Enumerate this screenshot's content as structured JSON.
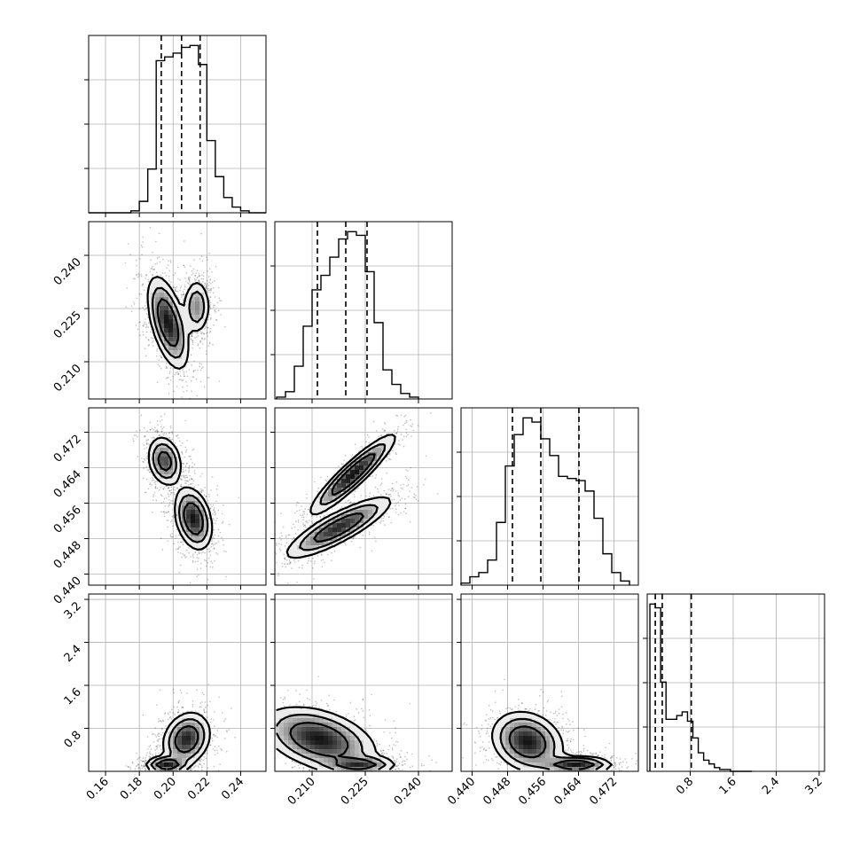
{
  "chart_data": {
    "type": "scatter",
    "description_kind": "corner plot",
    "params": [
      {
        "id": "p0",
        "range": [
          0.15,
          0.255
        ],
        "ticks": [
          0.16,
          0.18,
          0.2,
          0.22,
          0.24
        ],
        "tick_labels": [
          "0.16",
          "0.18",
          "0.20",
          "0.22",
          "0.24"
        ]
      },
      {
        "id": "p1",
        "range": [
          0.1995,
          0.2495
        ],
        "ticks": [
          0.21,
          0.225,
          0.24
        ],
        "tick_labels": [
          "0.210",
          "0.225",
          "0.240"
        ]
      },
      {
        "id": "p2",
        "range": [
          0.4375,
          0.4775
        ],
        "ticks": [
          0.44,
          0.448,
          0.456,
          0.464,
          0.472
        ],
        "tick_labels": [
          "0.440",
          "0.448",
          "0.456",
          "0.464",
          "0.472"
        ]
      },
      {
        "id": "p3",
        "range": [
          0.0,
          3.3
        ],
        "ticks": [
          0.8,
          1.6,
          2.4,
          3.2
        ],
        "tick_labels": [
          "0.8",
          "1.6",
          "2.4",
          "3.2"
        ]
      }
    ],
    "histograms": [
      {
        "param": 0,
        "bin_edges": [
          0.15,
          0.155,
          0.16,
          0.165,
          0.17,
          0.175,
          0.18,
          0.185,
          0.19,
          0.195,
          0.2,
          0.205,
          0.21,
          0.215,
          0.22,
          0.225,
          0.23,
          0.235,
          0.24,
          0.245,
          0.25,
          0.255
        ],
        "counts": [
          0,
          0,
          0,
          0,
          0,
          1,
          6,
          23,
          80,
          82,
          84,
          87,
          88,
          78,
          38,
          19,
          8,
          3,
          1,
          0,
          0
        ],
        "quantiles": [
          0.193,
          0.205,
          0.216
        ]
      },
      {
        "param": 1,
        "bin_edges": [
          0.2,
          0.2025,
          0.205,
          0.2075,
          0.21,
          0.2125,
          0.215,
          0.2175,
          0.22,
          0.2225,
          0.225,
          0.2275,
          0.23,
          0.2325,
          0.235,
          0.2375,
          0.24
        ],
        "counts": [
          1,
          4,
          18,
          40,
          60,
          68,
          78,
          88,
          92,
          90,
          70,
          42,
          16,
          8,
          3,
          1
        ],
        "quantiles": [
          0.2115,
          0.2195,
          0.2255
        ]
      },
      {
        "param": 2,
        "bin_edges": [
          0.4375,
          0.4395,
          0.4415,
          0.4435,
          0.4455,
          0.4475,
          0.4495,
          0.4515,
          0.4535,
          0.4555,
          0.4575,
          0.4595,
          0.4615,
          0.4635,
          0.4655,
          0.4675,
          0.4695,
          0.4715,
          0.4735,
          0.4755
        ],
        "counts": [
          1,
          4,
          6,
          12,
          30,
          57,
          72,
          80,
          78,
          70,
          62,
          52,
          51,
          50,
          45,
          32,
          15,
          6,
          2
        ],
        "quantiles": [
          0.4491,
          0.4555,
          0.4641
        ]
      },
      {
        "param": 3,
        "bin_edges": [
          0.05,
          0.15,
          0.25,
          0.35,
          0.45,
          0.55,
          0.65,
          0.75,
          0.85,
          0.95,
          1.05,
          1.15,
          1.25,
          1.35,
          1.45,
          1.55,
          1.65,
          1.75,
          1.85,
          1.95
        ],
        "counts": [
          90,
          88,
          48,
          28,
          28,
          30,
          32,
          27,
          18,
          10,
          6,
          4,
          2,
          1,
          1,
          0,
          0,
          0,
          0
        ],
        "quantiles": [
          0.15,
          0.28,
          0.82
        ]
      }
    ],
    "pairs": [
      {
        "x": 0,
        "y": 1,
        "modes": [
          {
            "mu": [
              0.197,
              0.221
            ],
            "sd": [
              0.006,
              0.0065
            ],
            "rho": -0.55,
            "weight": 0.6
          },
          {
            "mu": [
              0.214,
              0.2255
            ],
            "sd": [
              0.004,
              0.004
            ],
            "rho": 0.0,
            "weight": 0.4
          }
        ]
      },
      {
        "x": 0,
        "y": 2,
        "modes": [
          {
            "mu": [
              0.195,
              0.4655
            ],
            "sd": [
              0.005,
              0.0028
            ],
            "rho": -0.2,
            "weight": 0.45
          },
          {
            "mu": [
              0.212,
              0.4525
            ],
            "sd": [
              0.0055,
              0.0035
            ],
            "rho": -0.3,
            "weight": 0.55
          }
        ]
      },
      {
        "x": 1,
        "y": 2,
        "modes": [
          {
            "mu": [
              0.2215,
              0.4625
            ],
            "sd": [
              0.006,
              0.0045
            ],
            "rho": 0.92,
            "weight": 0.45
          },
          {
            "mu": [
              0.2175,
              0.4505
            ],
            "sd": [
              0.0075,
              0.0035
            ],
            "rho": 0.85,
            "weight": 0.55
          }
        ]
      },
      {
        "x": 0,
        "y": 3,
        "modes": [
          {
            "mu": [
              0.196,
              0.12
            ],
            "sd": [
              0.006,
              0.08
            ],
            "rho": 0.0,
            "weight": 0.5
          },
          {
            "mu": [
              0.208,
              0.6
            ],
            "sd": [
              0.007,
              0.25
            ],
            "rho": 0.2,
            "weight": 0.5
          }
        ]
      },
      {
        "x": 1,
        "y": 3,
        "modes": [
          {
            "mu": [
              0.2235,
              0.12
            ],
            "sd": [
              0.005,
              0.08
            ],
            "rho": 0.0,
            "weight": 0.45
          },
          {
            "mu": [
              0.212,
              0.6
            ],
            "sd": [
              0.008,
              0.3
            ],
            "rho": -0.4,
            "weight": 0.55
          }
        ]
      },
      {
        "x": 2,
        "y": 3,
        "modes": [
          {
            "mu": [
              0.4635,
              0.12
            ],
            "sd": [
              0.004,
              0.08
            ],
            "rho": 0.0,
            "weight": 0.5
          },
          {
            "mu": [
              0.4525,
              0.55
            ],
            "sd": [
              0.004,
              0.28
            ],
            "rho": -0.2,
            "weight": 0.5
          }
        ]
      }
    ],
    "grid": true,
    "colors": {
      "line": "#000000",
      "grid": "#b0b0b0",
      "background": "#ffffff"
    }
  }
}
